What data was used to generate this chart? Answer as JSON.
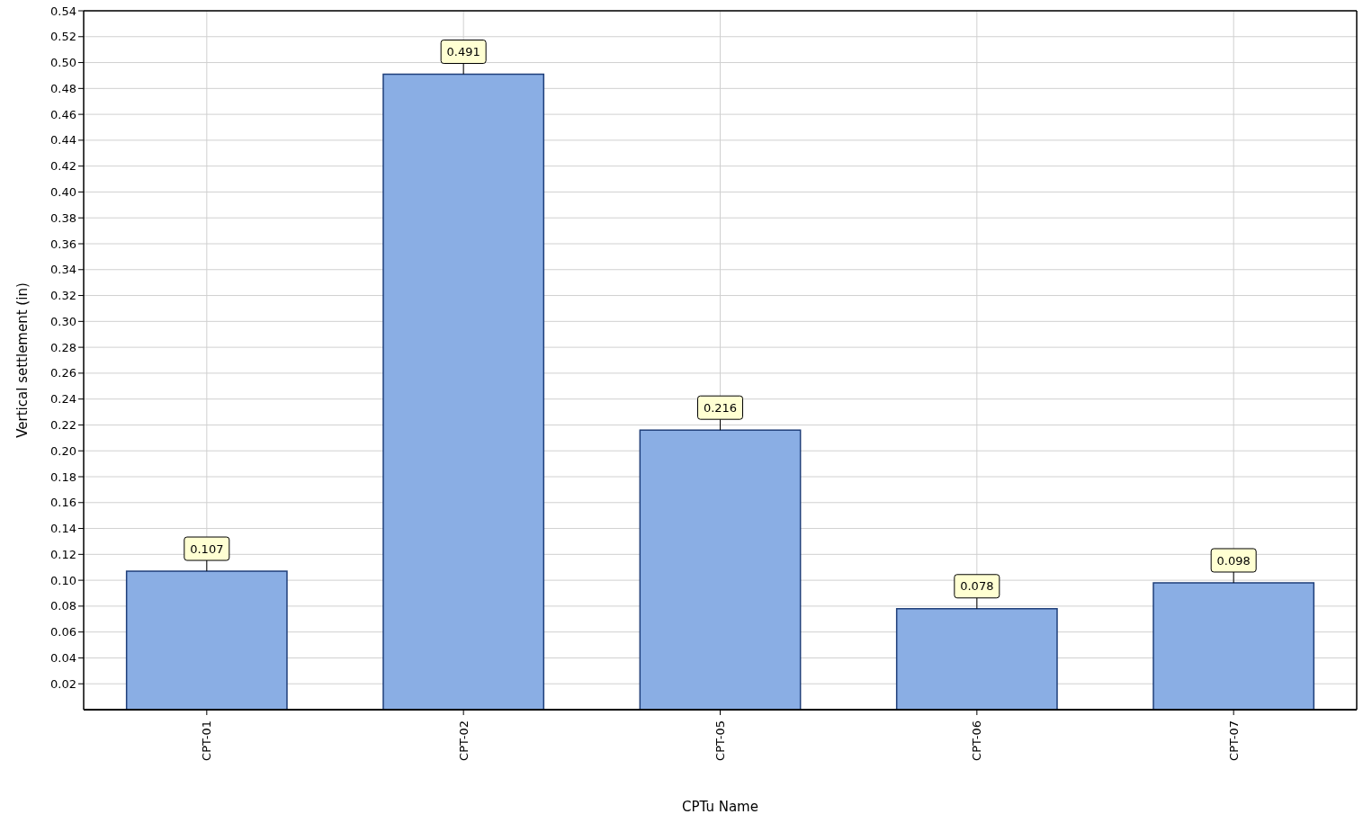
{
  "chart_data": {
    "type": "bar",
    "xlabel": "CPTu Name",
    "ylabel": "Vertical settlement (in)",
    "categories": [
      "CPT-01",
      "CPT-02",
      "CPT-05",
      "CPT-06",
      "CPT-07"
    ],
    "values": [
      0.107,
      0.491,
      0.216,
      0.078,
      0.098
    ],
    "color": "#8aaee4",
    "ylim": [
      0,
      0.54
    ],
    "yticks": [
      0.02,
      0.04,
      0.06,
      0.08,
      {
        "value": 0.1,
        "label": "0.10"
      },
      0.12,
      0.14,
      0.16,
      0.18,
      {
        "value": 0.2,
        "label": "0.20"
      },
      0.22,
      0.24,
      0.26,
      0.28,
      {
        "value": 0.3,
        "label": "0.30"
      },
      0.32,
      0.34,
      0.36,
      0.38,
      {
        "value": 0.4,
        "label": "0.40"
      },
      0.42,
      0.44,
      0.46,
      0.48,
      {
        "value": 0.5,
        "label": "0.50"
      },
      0.52,
      0.54
    ],
    "grid": true,
    "data_labels": true
  }
}
